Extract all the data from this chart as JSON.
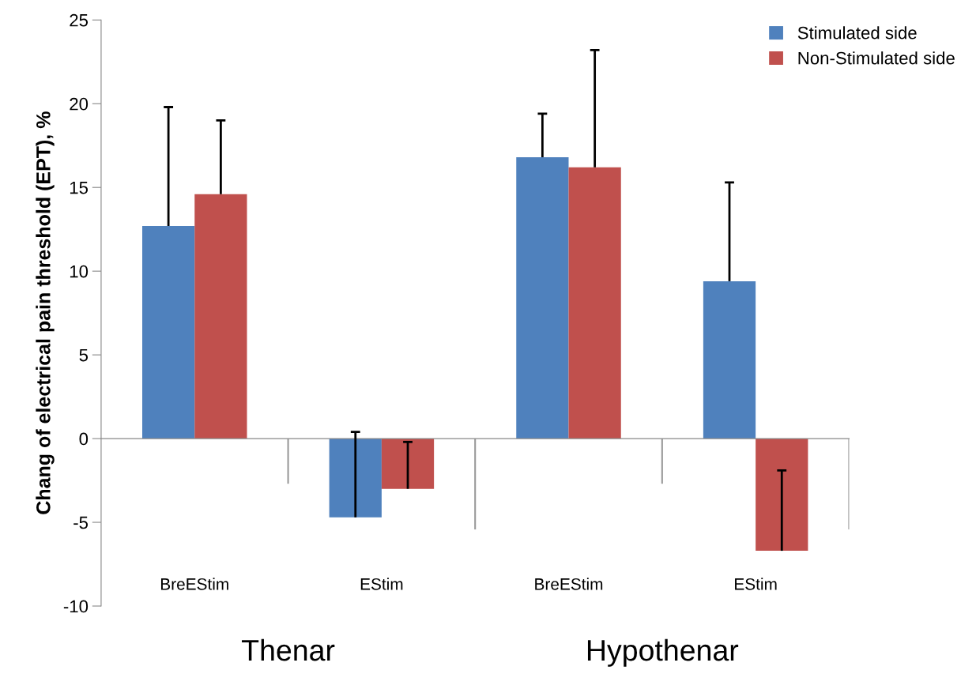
{
  "chart_data": {
    "type": "bar",
    "ylabel": "Chang of electrical pain threshold (EPT), %",
    "categories": [
      "BreEStim",
      "EStim",
      "BreEStim",
      "EStim"
    ],
    "annotations": [
      "Thenar",
      "Hypothenar"
    ],
    "series": [
      {
        "name": "Stimulated side",
        "color": "#4f81bd",
        "values": [
          12.7,
          -4.7,
          16.8,
          9.4
        ],
        "errors": [
          [
            12.7,
            19.8
          ],
          [
            -4.7,
            0.4
          ],
          [
            16.8,
            19.4
          ],
          [
            9.4,
            15.3
          ]
        ]
      },
      {
        "name": "Non-Stimulated side",
        "color": "#c0504d",
        "values": [
          14.6,
          -3.0,
          16.2,
          -6.7
        ],
        "errors": [
          [
            14.6,
            19.0
          ],
          [
            -3.0,
            -0.2
          ],
          [
            16.2,
            23.2
          ],
          [
            -6.7,
            -1.9
          ]
        ]
      }
    ],
    "ylim": [
      -10,
      25
    ],
    "yticks": [
      -10,
      -5,
      0,
      5,
      10,
      15,
      20,
      25
    ],
    "legend": "top right"
  }
}
